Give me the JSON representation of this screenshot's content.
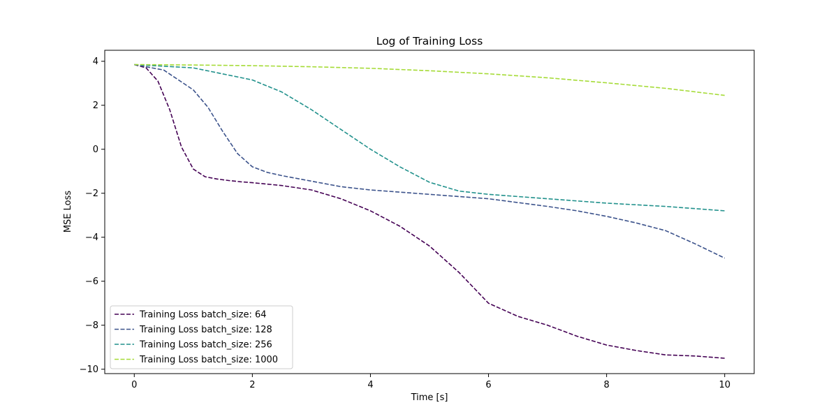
{
  "chart_data": {
    "type": "line",
    "title": "Log of Training Loss",
    "xlabel": "Time [s]",
    "ylabel": "MSE Loss",
    "xlim": [
      -0.5,
      10.5
    ],
    "ylim": [
      -10.2,
      4.5
    ],
    "xticks": [
      0,
      2,
      4,
      6,
      8,
      10
    ],
    "yticks": [
      -10,
      -8,
      -6,
      -4,
      -2,
      0,
      2,
      4
    ],
    "xtick_labels": [
      "0",
      "2",
      "4",
      "6",
      "8",
      "10"
    ],
    "ytick_labels": [
      "−10",
      "−8",
      "−6",
      "−4",
      "−2",
      "0",
      "2",
      "4"
    ],
    "grid": false,
    "legend_position": "lower-left",
    "series": [
      {
        "name": "Training Loss batch_size: 64",
        "color": "#440154",
        "linestyle": "dashed",
        "x": [
          0,
          0.2,
          0.4,
          0.6,
          0.8,
          1.0,
          1.2,
          1.4,
          1.6,
          1.8,
          2.0,
          2.5,
          3.0,
          3.5,
          4.0,
          4.5,
          5.0,
          5.5,
          6.0,
          6.5,
          7.0,
          7.5,
          8.0,
          8.5,
          9.0,
          9.5,
          10.0
        ],
        "y": [
          3.85,
          3.7,
          3.1,
          1.8,
          0.1,
          -0.9,
          -1.25,
          -1.35,
          -1.42,
          -1.48,
          -1.52,
          -1.65,
          -1.85,
          -2.25,
          -2.8,
          -3.5,
          -4.4,
          -5.6,
          -7.0,
          -7.6,
          -8.0,
          -8.5,
          -8.9,
          -9.15,
          -9.35,
          -9.4,
          -9.5
        ]
      },
      {
        "name": "Training Loss batch_size: 128",
        "color": "#3b528b",
        "linestyle": "dashed",
        "x": [
          0,
          0.5,
          1.0,
          1.25,
          1.5,
          1.75,
          2.0,
          2.25,
          2.5,
          3.0,
          3.5,
          4.0,
          5.0,
          6.0,
          7.0,
          7.5,
          8.0,
          8.5,
          9.0,
          9.5,
          10.0
        ],
        "y": [
          3.85,
          3.6,
          2.7,
          1.9,
          0.8,
          -0.2,
          -0.8,
          -1.05,
          -1.2,
          -1.45,
          -1.7,
          -1.85,
          -2.05,
          -2.25,
          -2.6,
          -2.8,
          -3.05,
          -3.35,
          -3.7,
          -4.3,
          -4.95
        ]
      },
      {
        "name": "Training Loss batch_size: 256",
        "color": "#21918c",
        "linestyle": "dashed",
        "x": [
          0,
          1.0,
          2.0,
          2.5,
          3.0,
          3.5,
          4.0,
          4.5,
          5.0,
          5.5,
          6.0,
          7.0,
          8.0,
          9.0,
          10.0
        ],
        "y": [
          3.85,
          3.7,
          3.15,
          2.6,
          1.8,
          0.9,
          0.0,
          -0.8,
          -1.5,
          -1.9,
          -2.05,
          -2.25,
          -2.45,
          -2.6,
          -2.8
        ]
      },
      {
        "name": "Training Loss batch_size: 1000",
        "color": "#a5db36",
        "linestyle": "dashed",
        "x": [
          0,
          1,
          2,
          3,
          4,
          5,
          6,
          7,
          8,
          9,
          10
        ],
        "y": [
          3.85,
          3.83,
          3.8,
          3.75,
          3.68,
          3.57,
          3.43,
          3.25,
          3.02,
          2.77,
          2.45
        ]
      }
    ]
  }
}
